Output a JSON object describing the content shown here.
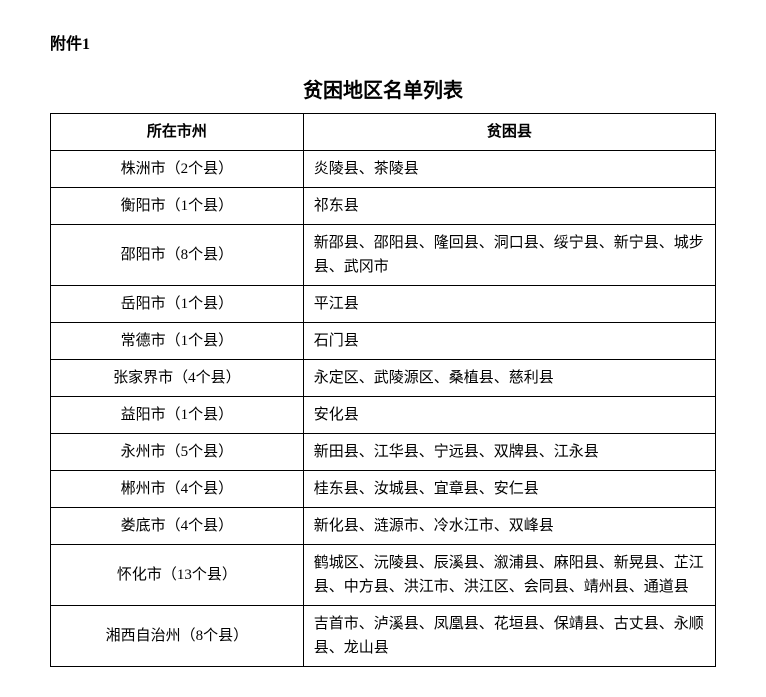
{
  "attachment_label": "附件1",
  "table_title": "贫困地区名单列表",
  "headers": {
    "city": "所在市州",
    "county": "贫困县"
  },
  "rows": [
    {
      "city": "株洲市（2个县）",
      "counties": "炎陵县、茶陵县"
    },
    {
      "city": "衡阳市（1个县）",
      "counties": "祁东县"
    },
    {
      "city": "邵阳市（8个县）",
      "counties": "新邵县、邵阳县、隆回县、洞口县、绥宁县、新宁县、城步县、武冈市"
    },
    {
      "city": "岳阳市（1个县）",
      "counties": "平江县"
    },
    {
      "city": "常德市（1个县）",
      "counties": "石门县"
    },
    {
      "city": "张家界市（4个县）",
      "counties": "永定区、武陵源区、桑植县、慈利县"
    },
    {
      "city": "益阳市（1个县）",
      "counties": "安化县"
    },
    {
      "city": "永州市（5个县）",
      "counties": "新田县、江华县、宁远县、双牌县、江永县"
    },
    {
      "city": "郴州市（4个县）",
      "counties": "桂东县、汝城县、宜章县、安仁县"
    },
    {
      "city": "娄底市（4个县）",
      "counties": "新化县、涟源市、冷水江市、双峰县"
    },
    {
      "city": "怀化市（13个县）",
      "counties": "鹤城区、沅陵县、辰溪县、溆浦县、麻阳县、新晃县、芷江县、中方县、洪江市、洪江区、会同县、靖州县、通道县"
    },
    {
      "city": "湘西自治州（8个县）",
      "counties": "吉首市、泸溪县、凤凰县、花垣县、保靖县、古丈县、永顺县、龙山县"
    }
  ]
}
